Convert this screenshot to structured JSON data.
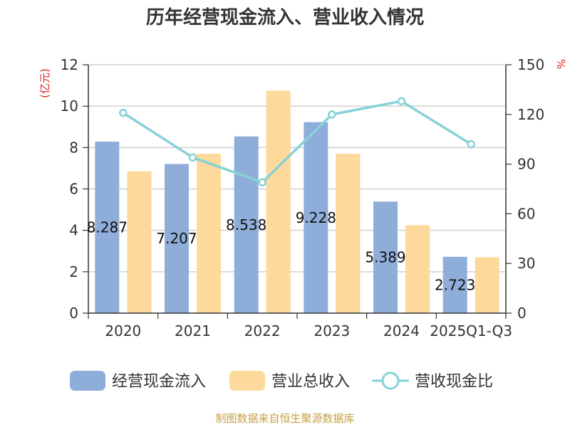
{
  "chart_data": {
    "type": "bar",
    "title": "历年经营现金流入、营业收入情况",
    "categories": [
      "2020",
      "2021",
      "2022",
      "2023",
      "2024",
      "2025Q1-Q3"
    ],
    "left_axis": {
      "unit": "(亿元)",
      "ylim": [
        0,
        12
      ],
      "ticks": [
        0,
        2,
        4,
        6,
        8,
        10,
        12
      ]
    },
    "right_axis": {
      "unit": "%",
      "ylim": [
        0,
        150
      ],
      "ticks": [
        0,
        30,
        60,
        90,
        120,
        150
      ]
    },
    "series": [
      {
        "name": "经营现金流入",
        "type": "bar",
        "axis": "left",
        "color": "#8fadd9",
        "values": [
          8.287,
          7.207,
          8.538,
          9.228,
          5.389,
          2.723
        ],
        "labels": [
          "8.287",
          "7.207",
          "8.538",
          "9.228",
          "5.389",
          "2.723"
        ]
      },
      {
        "name": "营业总收入",
        "type": "bar",
        "axis": "left",
        "color": "#fdd99b",
        "values": [
          6.85,
          7.7,
          10.75,
          7.7,
          4.25,
          2.7
        ]
      },
      {
        "name": "营收现金比",
        "type": "line",
        "axis": "right",
        "color": "#86d2d6",
        "values": [
          121,
          94,
          79,
          120,
          128,
          102
        ]
      }
    ],
    "grid": true,
    "legend_position": "bottom"
  },
  "source_note": "制图数据来自恒生聚源数据库"
}
